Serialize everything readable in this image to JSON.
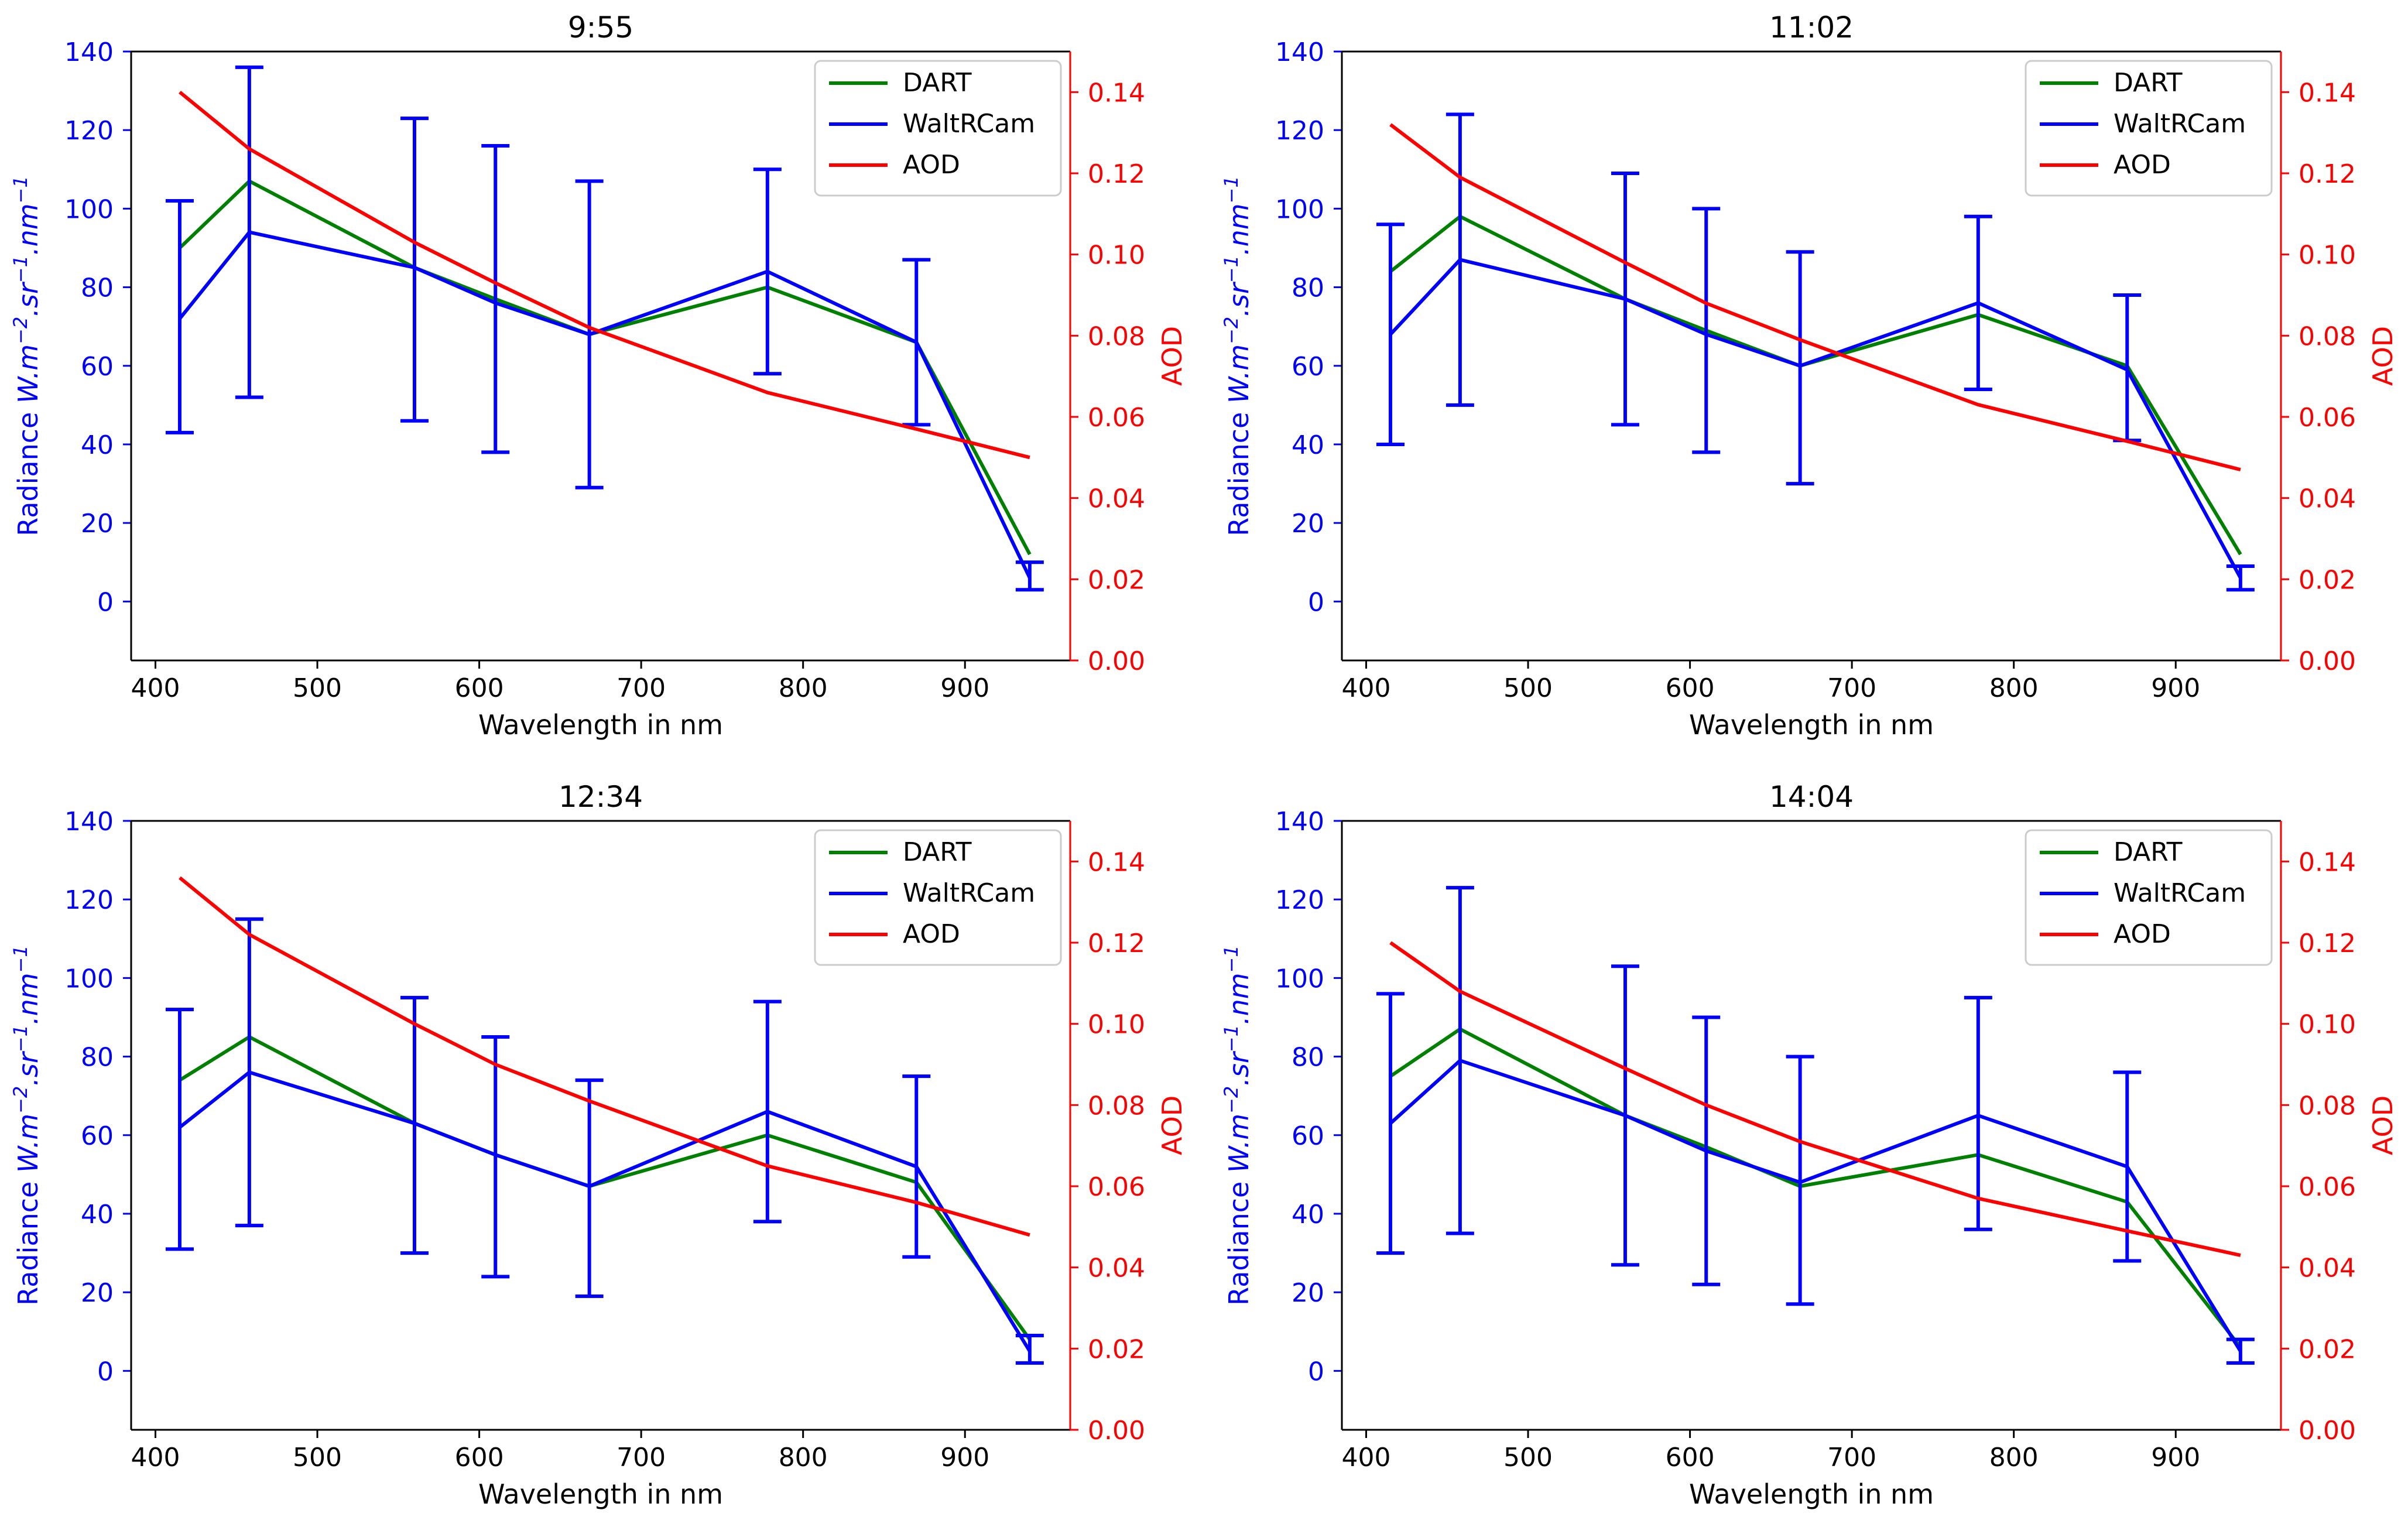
{
  "figure": {
    "shared": {
      "xlabel": "Wavelength in nm",
      "ylabel_left": "Radiance W.m⁻².sr⁻¹.nm⁻¹",
      "ylabel_left_parts": [
        "Radiance ",
        "W.m",
        "−2",
        ".sr",
        "−1",
        ".nm",
        "−1"
      ],
      "ylabel_right": "AOD",
      "xlim": [
        385,
        965
      ],
      "xticks": [
        400,
        500,
        600,
        700,
        800,
        900
      ],
      "ylim_left": [
        -15,
        140
      ],
      "yticks_left": [
        0,
        20,
        40,
        60,
        80,
        100,
        120,
        140
      ],
      "ylim_right": [
        0,
        0.15
      ],
      "yticks_right": [
        "0.00",
        "0.02",
        "0.04",
        "0.06",
        "0.08",
        "0.10",
        "0.12",
        "0.14"
      ],
      "legend": [
        "DART",
        "WaltRCam",
        "AOD"
      ],
      "colors": {
        "dart": "#008000",
        "waltrcam": "#0000ff",
        "aod": "#ff0000",
        "left_axis": "#0000ff",
        "right_axis": "#ff0000"
      }
    }
  },
  "chart_data": [
    {
      "type": "line",
      "title": "9:55",
      "x": [
        415,
        458,
        560,
        610,
        668,
        778,
        870,
        940
      ],
      "series": [
        {
          "name": "DART",
          "axis": "left",
          "values": [
            90,
            107,
            85,
            77,
            68,
            80,
            66,
            12
          ]
        },
        {
          "name": "WaltRCam",
          "axis": "left",
          "values": [
            72,
            94,
            85,
            76,
            68,
            84,
            66,
            6
          ],
          "err_low": [
            43,
            52,
            46,
            38,
            29,
            58,
            45,
            3
          ],
          "err_high": [
            102,
            136,
            123,
            116,
            107,
            110,
            87,
            10
          ]
        },
        {
          "name": "AOD",
          "axis": "right",
          "values": [
            0.14,
            0.126,
            0.103,
            0.093,
            0.082,
            0.066,
            0.057,
            0.05
          ]
        }
      ]
    },
    {
      "type": "line",
      "title": "11:02",
      "x": [
        415,
        458,
        560,
        610,
        668,
        778,
        870,
        940
      ],
      "series": [
        {
          "name": "DART",
          "axis": "left",
          "values": [
            84,
            98,
            77,
            69,
            60,
            73,
            60,
            12
          ]
        },
        {
          "name": "WaltRCam",
          "axis": "left",
          "values": [
            68,
            87,
            77,
            68,
            60,
            76,
            59,
            6
          ],
          "err_low": [
            40,
            50,
            45,
            38,
            30,
            54,
            41,
            3
          ],
          "err_high": [
            96,
            124,
            109,
            100,
            89,
            98,
            78,
            9
          ]
        },
        {
          "name": "AOD",
          "axis": "right",
          "values": [
            0.132,
            0.119,
            0.098,
            0.088,
            0.079,
            0.063,
            0.054,
            0.047
          ]
        }
      ]
    },
    {
      "type": "line",
      "title": "12:34",
      "x": [
        415,
        458,
        560,
        610,
        668,
        778,
        870,
        940
      ],
      "series": [
        {
          "name": "DART",
          "axis": "left",
          "values": [
            74,
            85,
            63,
            55,
            47,
            60,
            48,
            8
          ]
        },
        {
          "name": "WaltRCam",
          "axis": "left",
          "values": [
            62,
            76,
            63,
            55,
            47,
            66,
            52,
            5
          ],
          "err_low": [
            31,
            37,
            30,
            24,
            19,
            38,
            29,
            2
          ],
          "err_high": [
            92,
            115,
            95,
            85,
            74,
            94,
            75,
            9
          ]
        },
        {
          "name": "AOD",
          "axis": "right",
          "values": [
            0.136,
            0.122,
            0.1,
            0.09,
            0.081,
            0.065,
            0.056,
            0.048
          ]
        }
      ]
    },
    {
      "type": "line",
      "title": "14:04",
      "x": [
        415,
        458,
        560,
        610,
        668,
        778,
        870,
        940
      ],
      "series": [
        {
          "name": "DART",
          "axis": "left",
          "values": [
            75,
            87,
            65,
            57,
            47,
            55,
            43,
            6
          ]
        },
        {
          "name": "WaltRCam",
          "axis": "left",
          "values": [
            63,
            79,
            65,
            56,
            48,
            65,
            52,
            5
          ],
          "err_low": [
            30,
            35,
            27,
            22,
            17,
            36,
            28,
            2
          ],
          "err_high": [
            96,
            123,
            103,
            90,
            80,
            95,
            76,
            8
          ]
        },
        {
          "name": "AOD",
          "axis": "right",
          "values": [
            0.12,
            0.108,
            0.089,
            0.08,
            0.071,
            0.057,
            0.049,
            0.043
          ]
        }
      ]
    }
  ]
}
